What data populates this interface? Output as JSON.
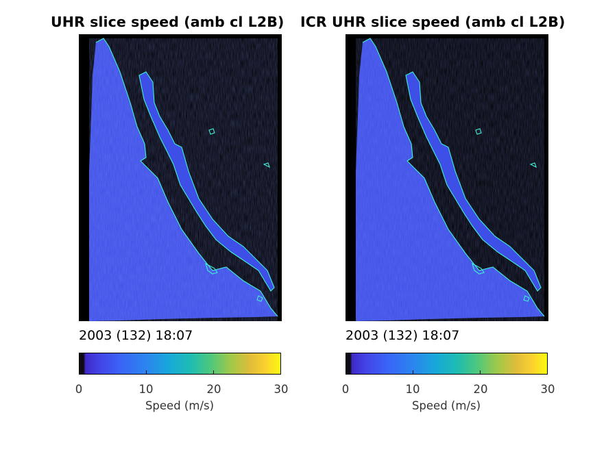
{
  "colors": {
    "background": "#000000",
    "water": "#3e4fe8",
    "coast": "#40f0d8",
    "land": "#000000"
  },
  "chart_data": [
    {
      "type": "heatmap",
      "title": "UHR slice speed (amb cl L2B)",
      "timestamp": "2003 (132) 18:07",
      "colorbar": {
        "label": "Speed (m/s)",
        "range": [
          0,
          30
        ],
        "ticks": [
          "0",
          "10",
          "20",
          "30"
        ],
        "colormap": "parula"
      },
      "dominant_speed_ms": 6
    },
    {
      "type": "heatmap",
      "title": "ICR UHR slice speed (amb cl L2B)",
      "timestamp": "2003 (132) 18:07",
      "colorbar": {
        "label": "Speed (m/s)",
        "range": [
          0,
          30
        ],
        "ticks": [
          "0",
          "10",
          "20",
          "30"
        ],
        "colormap": "parula"
      },
      "dominant_speed_ms": 6
    }
  ]
}
